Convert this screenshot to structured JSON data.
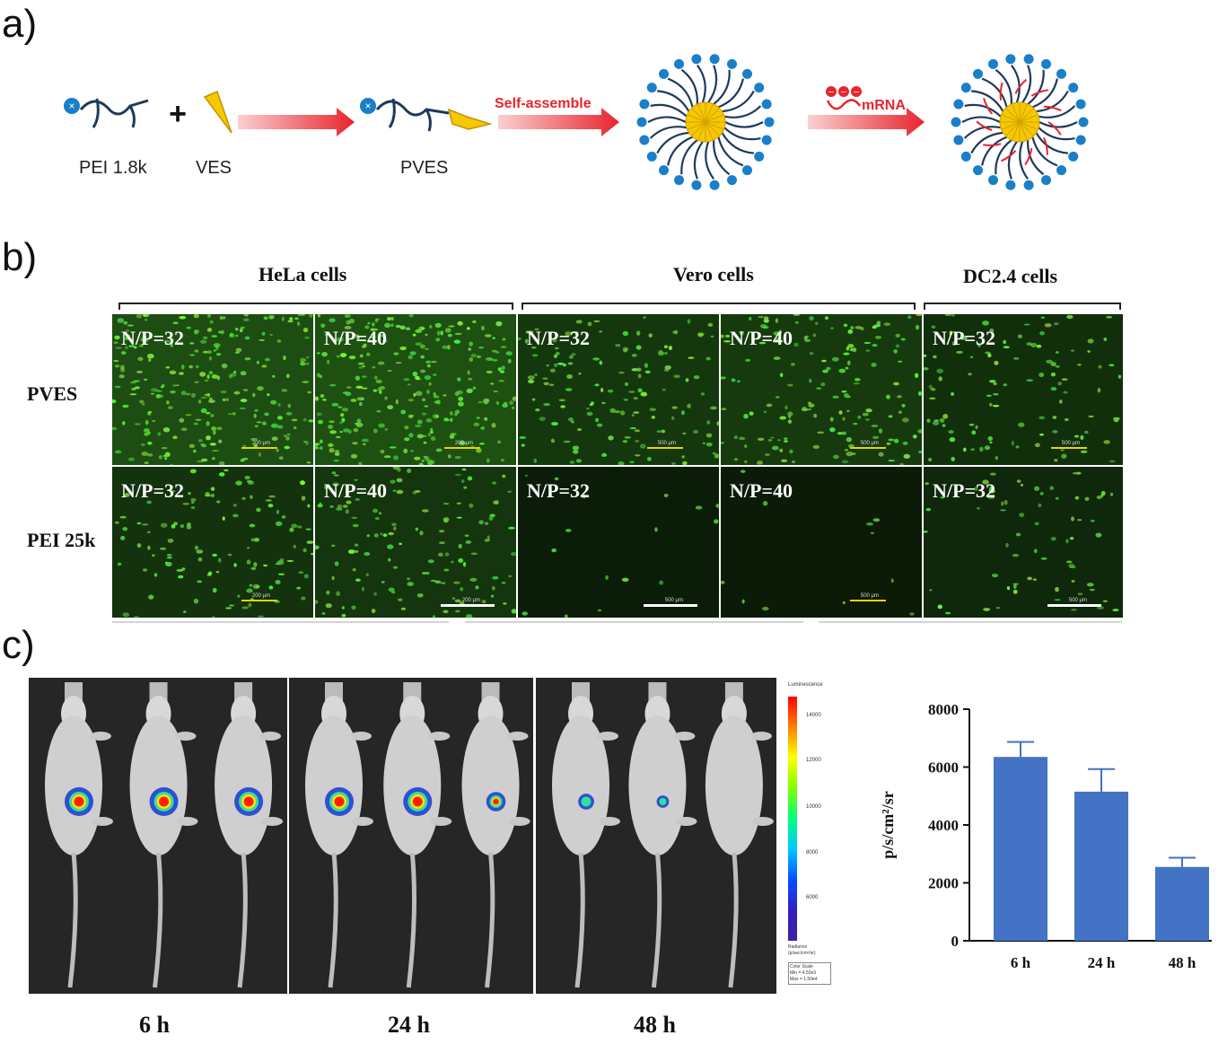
{
  "panels": {
    "a": "a)",
    "b": "b)",
    "c": "c)"
  },
  "scheme": {
    "pei_label": "PEI 1.8k",
    "ves_label": "VES",
    "pves_label": "PVES",
    "self_assemble": "Self-assemble",
    "mrna": "mRNA",
    "plus": "+"
  },
  "microscopy": {
    "headers": [
      "HeLa cells",
      "Vero cells",
      "DC2.4 cells"
    ],
    "row_labels": [
      "PVES",
      "PEI 25k"
    ],
    "cells": [
      {
        "np": "N/P=32",
        "scale": "200 μm"
      },
      {
        "np": "N/P=40",
        "scale": "200 μm"
      },
      {
        "np": "N/P=32",
        "scale": "500 μm"
      },
      {
        "np": "N/P=40",
        "scale": "500 μm"
      },
      {
        "np": "N/P=32",
        "scale": "500 μm"
      },
      {
        "np": "N/P=32",
        "scale": "200 μm"
      },
      {
        "np": "N/P=40",
        "scale": "200 μm"
      },
      {
        "np": "N/P=32",
        "scale": "500 μm"
      },
      {
        "np": "N/P=40",
        "scale": "500 μm"
      },
      {
        "np": "N/P=32",
        "scale": "500 μm"
      }
    ],
    "green_levels": [
      0.95,
      1.0,
      0.55,
      0.6,
      0.4,
      0.45,
      0.5,
      0.05,
      0.03,
      0.25
    ]
  },
  "imaging": {
    "time_labels": [
      "6 h",
      "24 h",
      "48 h"
    ],
    "colorbar": {
      "title": "Luminescence",
      "ticks": [
        "14000",
        "12000",
        "10000",
        "8000",
        "6000"
      ],
      "unit": "Radiance\n(p/sec/cm²/sr)",
      "scale_title": "Color Scale",
      "min": "Min = 4.50e3",
      "max": "Max = 1.50e4"
    }
  },
  "chart_data": {
    "type": "bar",
    "categories": [
      "6 h",
      "24 h",
      "48 h"
    ],
    "values": [
      6350,
      5150,
      2550
    ],
    "errors": [
      520,
      780,
      320
    ],
    "ylabel": "p/s/cm²/sr",
    "xlabel": "",
    "ylim": [
      0,
      8000
    ],
    "yticks": [
      0,
      2000,
      4000,
      6000,
      8000
    ],
    "bar_color": "#4472c4"
  },
  "colors": {
    "red_arrow": "#e8242c",
    "core": "#f5c800",
    "ion": "#1a7fc8",
    "chain": "#1d3a5c"
  }
}
